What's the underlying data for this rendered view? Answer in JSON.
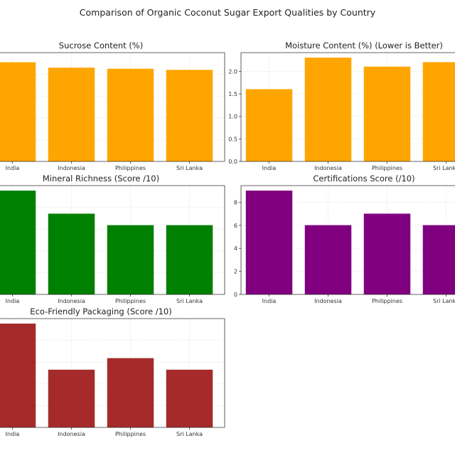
{
  "figure": {
    "title": "Comparison of Organic Coconut Sugar Export Qualities by Country"
  },
  "chart_data": [
    {
      "type": "bar",
      "title": "Sucrose Content (%)",
      "categories": [
        "India",
        "Indonesia",
        "Philippines",
        "Sri Lanka"
      ],
      "values": [
        91,
        86,
        85,
        84
      ],
      "color": "#ffa500",
      "ylim": [
        0,
        100
      ],
      "yticks": [],
      "grid": true
    },
    {
      "type": "bar",
      "title": "Moisture Content (%) (Lower is Better)",
      "categories": [
        "India",
        "Indonesia",
        "Philippines",
        "Sri Lanka"
      ],
      "values": [
        1.6,
        2.3,
        2.1,
        2.2
      ],
      "color": "#ffa500",
      "ylim": [
        0,
        2.415
      ],
      "yticks": [
        "0.0",
        "0.5",
        "1.0",
        "1.5",
        "2.0"
      ],
      "grid": true
    },
    {
      "type": "bar",
      "title": "Mineral Richness (Score /10)",
      "categories": [
        "India",
        "Indonesia",
        "Philippines",
        "Sri Lanka"
      ],
      "values": [
        9,
        7,
        6,
        6
      ],
      "color": "#008000",
      "ylim": [
        0,
        9.45
      ],
      "yticks": [],
      "grid": true
    },
    {
      "type": "bar",
      "title": "Certifications Score (/10)",
      "categories": [
        "India",
        "Indonesia",
        "Philippines",
        "Sri Lanka"
      ],
      "values": [
        9,
        6,
        7,
        6
      ],
      "color": "#800080",
      "ylim": [
        0,
        9.45
      ],
      "yticks": [
        "0",
        "2",
        "4",
        "6",
        "8"
      ],
      "grid": true
    },
    {
      "type": "bar",
      "title": "Eco-Friendly Packaging (Score /10)",
      "categories": [
        "India",
        "Indonesia",
        "Philippines",
        "Sri Lanka"
      ],
      "values": [
        9,
        5,
        6,
        5
      ],
      "color": "#a52a2a",
      "ylim": [
        0,
        9.45
      ],
      "yticks": [],
      "grid": true
    }
  ]
}
